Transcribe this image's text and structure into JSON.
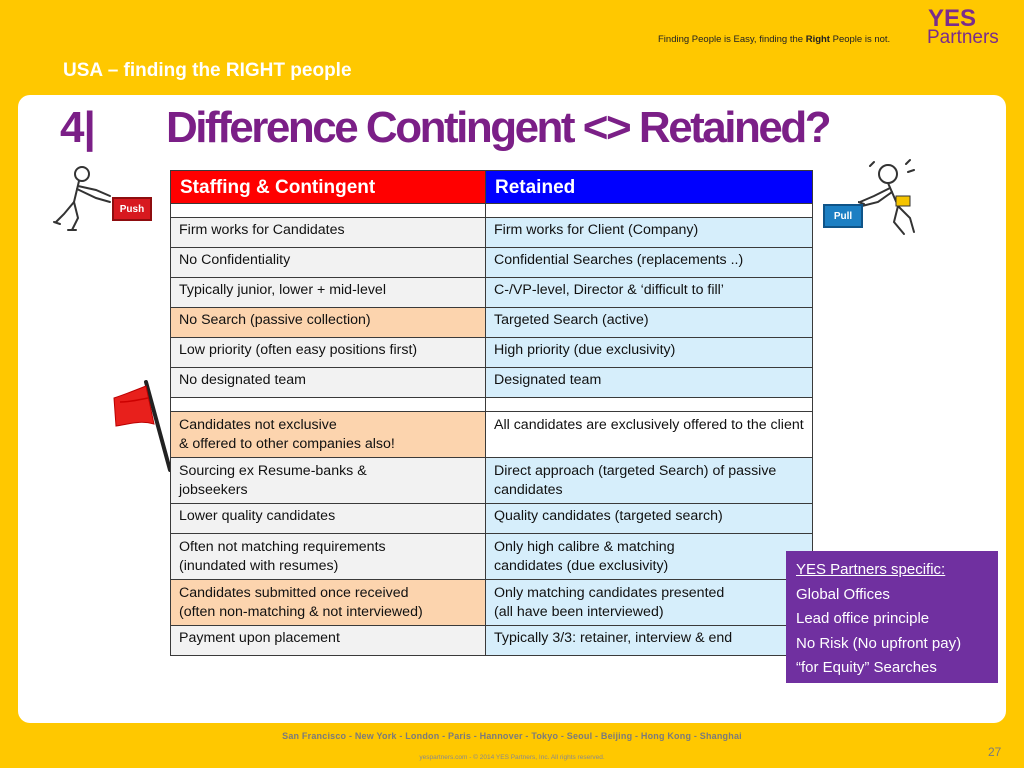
{
  "header": {
    "section_title": "USA – finding the RIGHT people",
    "tagline_prefix": "Finding People is Easy, finding the ",
    "tagline_bold": "Right",
    "tagline_suffix": " People is not.",
    "logo_top": "YES",
    "logo_bottom": "Partners"
  },
  "title": {
    "number": "4|",
    "text": "Difference  Contingent <> Retained?"
  },
  "buttons": {
    "push": "Push",
    "pull": "Pull"
  },
  "table": {
    "headers": [
      "Staffing & Contingent",
      "Retained"
    ],
    "rows": [
      [
        "",
        ""
      ],
      [
        "Firm works for Candidates",
        "Firm works for Client (Company)"
      ],
      [
        "No Confidentiality",
        "Confidential Searches (replacements ..)"
      ],
      [
        "Typically junior, lower + mid-level",
        "C-/VP-level, Director & ‘difficult to fill’"
      ],
      [
        "No Search (passive collection)",
        "Targeted Search (active)"
      ],
      [
        "Low priority (often easy positions first)",
        "High priority (due exclusivity)"
      ],
      [
        "No designated team",
        "Designated team"
      ],
      [
        "",
        ""
      ],
      [
        "Candidates not exclusive\n& offered to other companies also!",
        "All candidates are exclusively offered to the client"
      ],
      [
        "Sourcing ex Resume-banks &\njobseekers",
        "Direct approach (targeted Search) of passive candidates"
      ],
      [
        "Lower quality candidates",
        "Quality candidates (targeted search)"
      ],
      [
        "Often not matching requirements\n(inundated with resumes)",
        "Only high calibre & matching\ncandidates  (due exclusivity)"
      ],
      [
        "Candidates submitted once received\n(often non-matching & not interviewed)",
        "Only matching candidates presented\n(all  have been interviewed)"
      ],
      [
        "Payment upon placement",
        "Typically 3/3: retainer, interview & end"
      ]
    ]
  },
  "callout": {
    "title": "YES Partners specific:",
    "items": [
      "Global Offices",
      "Lead office principle",
      "No Risk (No upfront pay)",
      "“for Equity” Searches"
    ]
  },
  "footer": {
    "cities": "San Francisco - New York - London - Paris - Hannover - Tokyo - Seoul - Beijing - Hong Kong - Shanghai",
    "copyright": "yespartners.com - © 2014 YES Partners, Inc. All rights reserved.",
    "page_number": "27"
  }
}
